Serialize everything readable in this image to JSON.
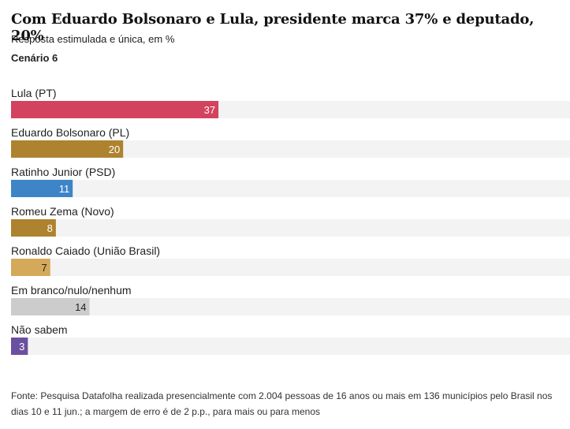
{
  "title": "Com Eduardo Bolsonaro e Lula, presidente marca 37% e deputado, 20%",
  "subtitle": "Resposta estimulada e única, em %",
  "scenario": "Cenário 6",
  "source": "Fonte: Pesquisa Datafolha realizada presencialmente com 2.004 pessoas de 16 anos ou mais em 136 municípios pelo Brasil nos dias 10 e 11 jun.; a margem de erro é de 2 p.p., para mais ou para menos",
  "chart_data": {
    "type": "bar",
    "orientation": "horizontal",
    "title": "Com Eduardo Bolsonaro e Lula, presidente marca 37% e deputado, 20%",
    "subtitle": "Resposta estimulada e única, em %",
    "categories": [
      "Lula (PT)",
      "Eduardo Bolsonaro (PL)",
      "Ratinho Junior (PSD)",
      "Romeu Zema (Novo)",
      "Ronaldo Caiado (União Brasil)",
      "Em branco/nulo/nenhum",
      "Não sabem"
    ],
    "values": [
      37,
      20,
      11,
      8,
      7,
      14,
      3
    ],
    "colors": [
      "#d3425f",
      "#ad832f",
      "#3e85c8",
      "#ad832f",
      "#d4a95a",
      "#cccccc",
      "#6b4fa0"
    ],
    "label_colors": [
      "#ffffff",
      "#ffffff",
      "#ffffff",
      "#ffffff",
      "#222222",
      "#222222",
      "#ffffff"
    ],
    "track_color": "#f3f3f3",
    "xlim": [
      0,
      100
    ],
    "grid": false,
    "legend": "none"
  }
}
